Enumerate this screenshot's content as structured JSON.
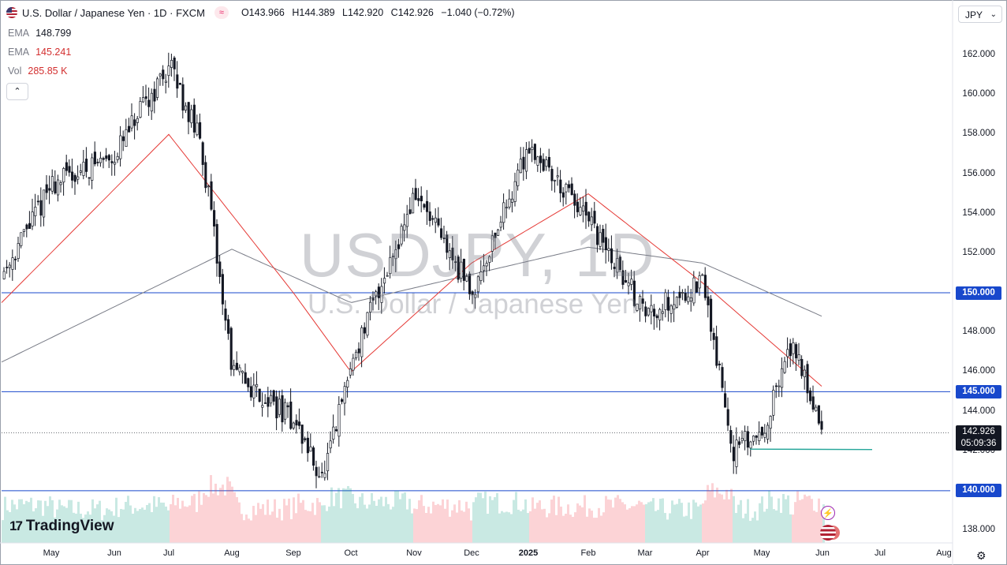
{
  "header": {
    "symbol_title": "U.S. Dollar / Japanese Yen · 1D · FXCM",
    "indicator_badge": "≈",
    "ohlc": {
      "o_label": "O",
      "o": "143.966",
      "h_label": "H",
      "h": "144.389",
      "l_label": "L",
      "l": "142.920",
      "c_label": "C",
      "c": "142.926",
      "change": "−1.040 (−0.72%)"
    },
    "currency": "JPY",
    "collapse_icon": "chevron-up-icon"
  },
  "indicators": [
    {
      "label": "EMA",
      "value": "148.799"
    },
    {
      "label": "EMA",
      "value": "145.241"
    },
    {
      "label": "Vol",
      "value": "285.85 K"
    }
  ],
  "watermark": {
    "line1": "USDJPY, 1D",
    "line2": "U.S. Dollar / Japanese Yen"
  },
  "logo": "TradingView",
  "colors": {
    "up": "#089981",
    "down": "#f23645",
    "ema_fast": "#e53935",
    "ema_slow": "#787b86",
    "hline": "#1848cc",
    "support": "#26a69a"
  },
  "chart_data": {
    "type": "candlestick",
    "ylim": [
      137,
      163
    ],
    "y_ticks": [
      "162.000",
      "160.000",
      "158.000",
      "156.000",
      "154.000",
      "152.000",
      "150.000",
      "148.000",
      "146.000",
      "144.000",
      "142.000",
      "140.000",
      "138.000"
    ],
    "x_labels": [
      "May",
      "Jun",
      "Jul",
      "Aug",
      "Sep",
      "Oct",
      "Nov",
      "Dec",
      "2025",
      "Feb",
      "Mar",
      "Apr",
      "May",
      "Jun",
      "Jul",
      "Aug"
    ],
    "horizontal_levels": [
      "150.000",
      "145.000",
      "140.000"
    ],
    "support_line": {
      "from": "Apr 2025",
      "to": "Jun 2025",
      "price": 142.1
    },
    "last_price": "142.926",
    "countdown": "05:09:36",
    "price_path": [
      {
        "t": "Apr 2024",
        "p": 151.0
      },
      {
        "t": "May 2024",
        "p": 155.5
      },
      {
        "t": "Jun 2024",
        "p": 157.0
      },
      {
        "t": "Jul 2024",
        "p": 161.5
      },
      {
        "t": "Jul 2024",
        "p": 157.5
      },
      {
        "t": "Aug 2024",
        "p": 146.0
      },
      {
        "t": "Sep 2024",
        "p": 143.5
      },
      {
        "t": "Sep 2024",
        "p": 140.5
      },
      {
        "t": "Oct 2024",
        "p": 146.5
      },
      {
        "t": "Nov 2024",
        "p": 155.0
      },
      {
        "t": "Dec 2024",
        "p": 150.0
      },
      {
        "t": "2025",
        "p": 157.5
      },
      {
        "t": "Feb 2025",
        "p": 153.5
      },
      {
        "t": "Mar 2025",
        "p": 149.0
      },
      {
        "t": "Apr 2025",
        "p": 150.5
      },
      {
        "t": "Apr 2025",
        "p": 142.0
      },
      {
        "t": "May 2025",
        "p": 143.0
      },
      {
        "t": "May 2025",
        "p": 147.5
      },
      {
        "t": "Jun 2025",
        "p": 142.926
      }
    ],
    "ema_fast_path": [
      {
        "t": "Apr 2024",
        "p": 149.5
      },
      {
        "t": "Jul 2024",
        "p": 158.0
      },
      {
        "t": "Sep 2024",
        "p": 150.0
      },
      {
        "t": "Oct 2024",
        "p": 146.0
      },
      {
        "t": "Dec 2024",
        "p": 151.5
      },
      {
        "t": "Feb 2025",
        "p": 155.0
      },
      {
        "t": "Apr 2025",
        "p": 150.5
      },
      {
        "t": "Jun 2025",
        "p": 145.241
      }
    ],
    "ema_slow_path": [
      {
        "t": "Apr 2024",
        "p": 146.5
      },
      {
        "t": "Aug 2024",
        "p": 152.2
      },
      {
        "t": "Oct 2024",
        "p": 149.5
      },
      {
        "t": "Feb 2025",
        "p": 152.3
      },
      {
        "t": "Apr 2025",
        "p": 151.5
      },
      {
        "t": "Jun 2025",
        "p": 148.799
      }
    ]
  }
}
